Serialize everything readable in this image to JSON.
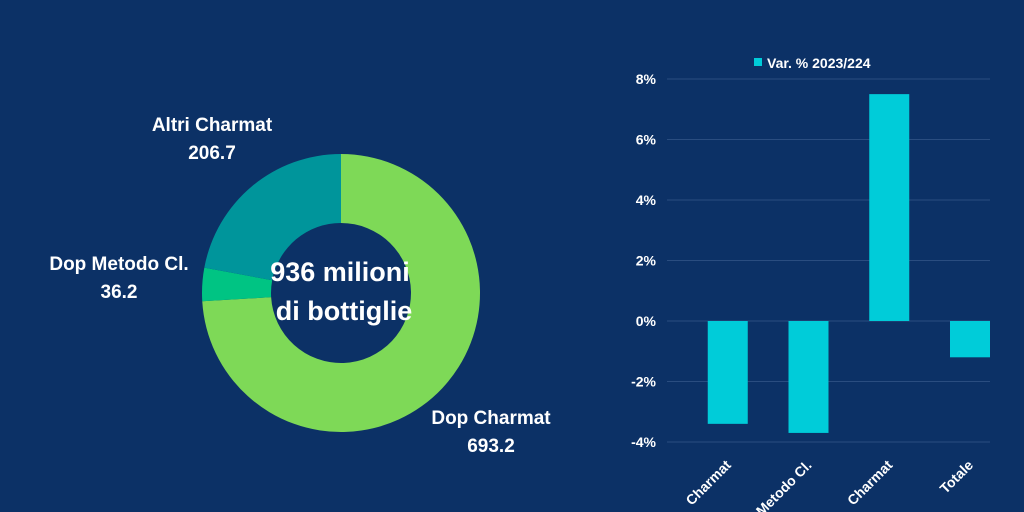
{
  "colors": {
    "background": "#0c3166",
    "dop_charmat": "#7ed957",
    "dop_metodo": "#00c483",
    "altri_charmat": "#00959b",
    "bars": "#00ccd9",
    "grid": "#2a4d80"
  },
  "chart_data": [
    {
      "type": "pie",
      "subtype": "donut",
      "center_label": [
        "936 milioni",
        "di bottiglie"
      ],
      "slices": [
        {
          "label": "Dop Charmat",
          "value": 693.2,
          "value_text": "693.2"
        },
        {
          "label": "Dop Metodo Cl.",
          "value": 36.2,
          "value_text": "36.2"
        },
        {
          "label": "Altri Charmat",
          "value": 206.7,
          "value_text": "206.7"
        }
      ]
    },
    {
      "type": "bar",
      "legend": "Var. % 2023/224",
      "legend_position": "top",
      "categories": [
        "Charmat",
        "Metodo Cl.",
        "Charmat",
        "Totale"
      ],
      "values": [
        -3.4,
        -3.7,
        7.5,
        -1.2
      ],
      "ylim": [
        -4,
        8
      ],
      "yticks": [
        8,
        6,
        4,
        2,
        0,
        -2,
        -4
      ],
      "ytick_labels": [
        "8%",
        "6%",
        "4%",
        "2%",
        "0%",
        "-2%",
        "-4%"
      ],
      "grid": true
    }
  ]
}
